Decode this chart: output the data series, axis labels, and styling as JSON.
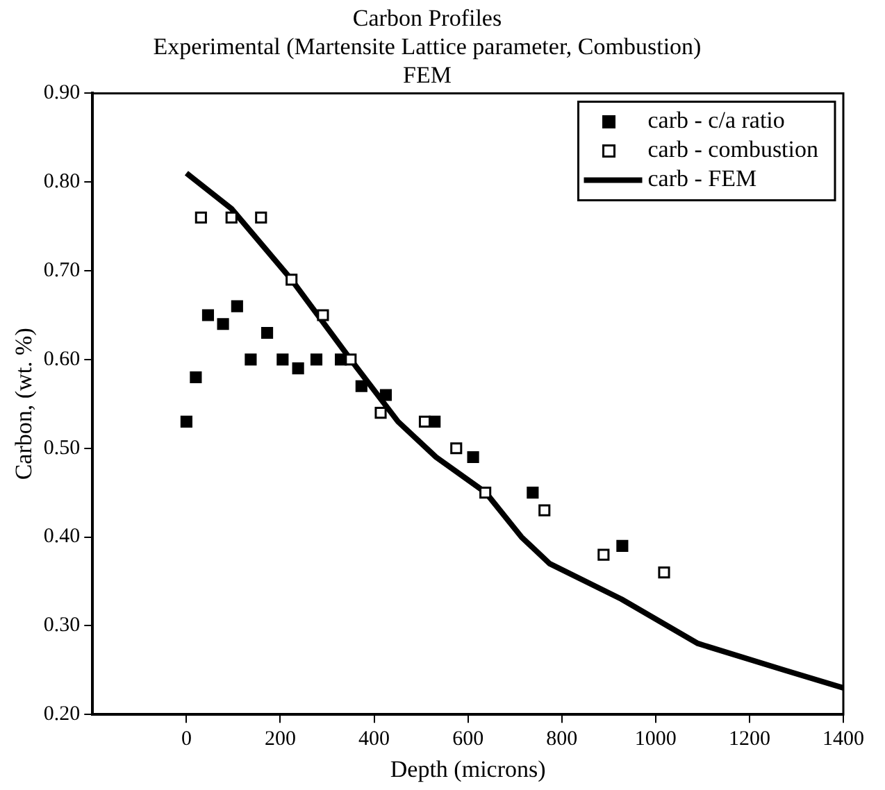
{
  "chart_data": {
    "type": "scatter",
    "title": "Carbon Profiles",
    "subtitle": [
      "Experimental (Martensite Lattice parameter, Combustion)",
      "FEM"
    ],
    "xlabel": "Depth (microns)",
    "ylabel": "Carbon, (wt. %)",
    "xlim": [
      -200,
      1400
    ],
    "xticks": [
      0,
      200,
      400,
      600,
      800,
      1000,
      1200,
      1400
    ],
    "ylim": [
      0.2,
      0.9
    ],
    "yticks": [
      {
        "value": 0.2,
        "label": "0.20"
      },
      {
        "value": 0.3,
        "label": "0.30"
      },
      {
        "value": 0.4,
        "label": "0.40"
      },
      {
        "value": 0.5,
        "label": "0.50"
      },
      {
        "value": 0.6,
        "label": "0.60"
      },
      {
        "value": 0.7,
        "label": "0.70"
      },
      {
        "value": 0.8,
        "label": "0.80"
      },
      {
        "value": 0.9,
        "label": "0.90"
      }
    ],
    "grid": false,
    "legend": "top right",
    "series": [
      {
        "name": "carb - c/a ratio",
        "marker": "square",
        "color": "#000000",
        "x": [
          0,
          20,
          46,
          78,
          108,
          137,
          172,
          205,
          238,
          277,
          329,
          373,
          425,
          529,
          611,
          738,
          929
        ],
        "values": [
          0.53,
          0.58,
          0.65,
          0.64,
          0.66,
          0.6,
          0.63,
          0.6,
          0.59,
          0.6,
          0.6,
          0.57,
          0.56,
          0.53,
          0.49,
          0.45,
          0.39
        ]
      },
      {
        "name": "carb - combustion",
        "marker": "square",
        "color": "#000000",
        "x": [
          31,
          96,
          159,
          224,
          291,
          350,
          414,
          508,
          575,
          637,
          763,
          889,
          1018
        ],
        "values": [
          0.76,
          0.76,
          0.76,
          0.69,
          0.65,
          0.6,
          0.54,
          0.53,
          0.5,
          0.45,
          0.43,
          0.38,
          0.36
        ]
      },
      {
        "name": "carb - FEM",
        "type": "line",
        "marker": "none",
        "line_style": "solid",
        "color": "#000000",
        "x": [
          0,
          96,
          224,
          350,
          451,
          532,
          638,
          714,
          774,
          927,
          1090,
          1274,
          1400
        ],
        "values": [
          0.81,
          0.77,
          0.69,
          0.6,
          0.53,
          0.49,
          0.45,
          0.4,
          0.37,
          0.33,
          0.28,
          0.25,
          0.23
        ]
      }
    ]
  }
}
